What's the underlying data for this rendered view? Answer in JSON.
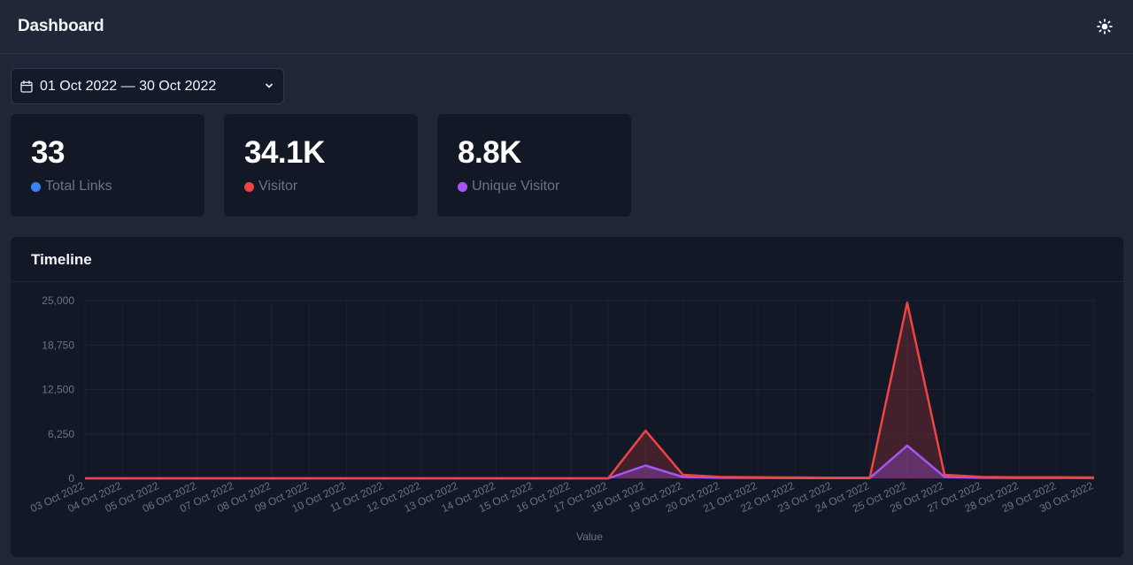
{
  "header": {
    "title": "Dashboard",
    "theme_icon": "sun-icon"
  },
  "date_range": {
    "label": "01 Oct 2022 — 30 Oct 2022",
    "icon": "calendar-icon"
  },
  "stats": [
    {
      "value": "33",
      "label": "Total Links",
      "color": "#3b82f6"
    },
    {
      "value": "34.1K",
      "label": "Visitor",
      "color": "#ef4444"
    },
    {
      "value": "8.8K",
      "label": "Unique Visitor",
      "color": "#a855f7"
    }
  ],
  "timeline": {
    "title": "Timeline"
  },
  "chart_data": {
    "type": "area",
    "xlabel": "Value",
    "ylabel": "",
    "ylim": [
      0,
      25000
    ],
    "yticks": [
      "25,000",
      "18,750",
      "12,500",
      "6,250",
      "0"
    ],
    "grid": true,
    "categories": [
      "03 Oct 2022",
      "04 Oct 2022",
      "05 Oct 2022",
      "06 Oct 2022",
      "07 Oct 2022",
      "08 Oct 2022",
      "09 Oct 2022",
      "10 Oct 2022",
      "11 Oct 2022",
      "12 Oct 2022",
      "13 Oct 2022",
      "14 Oct 2022",
      "15 Oct 2022",
      "16 Oct 2022",
      "17 Oct 2022",
      "18 Oct 2022",
      "19 Oct 2022",
      "20 Oct 2022",
      "21 Oct 2022",
      "22 Oct 2022",
      "23 Oct 2022",
      "24 Oct 2022",
      "25 Oct 2022",
      "26 Oct 2022",
      "27 Oct 2022",
      "28 Oct 2022",
      "29 Oct 2022",
      "30 Oct 2022"
    ],
    "series": [
      {
        "color": "#ef4444",
        "values": [
          0,
          0,
          0,
          0,
          0,
          0,
          0,
          0,
          0,
          0,
          0,
          0,
          0,
          0,
          0,
          6700,
          500,
          200,
          150,
          120,
          100,
          100,
          24700,
          500,
          200,
          150,
          150,
          120
        ]
      },
      {
        "color": "#a855f7",
        "values": [
          0,
          0,
          0,
          0,
          0,
          0,
          0,
          0,
          0,
          0,
          0,
          0,
          0,
          0,
          0,
          1800,
          200,
          80,
          60,
          50,
          40,
          40,
          4600,
          200,
          80,
          60,
          60,
          50
        ]
      }
    ]
  }
}
